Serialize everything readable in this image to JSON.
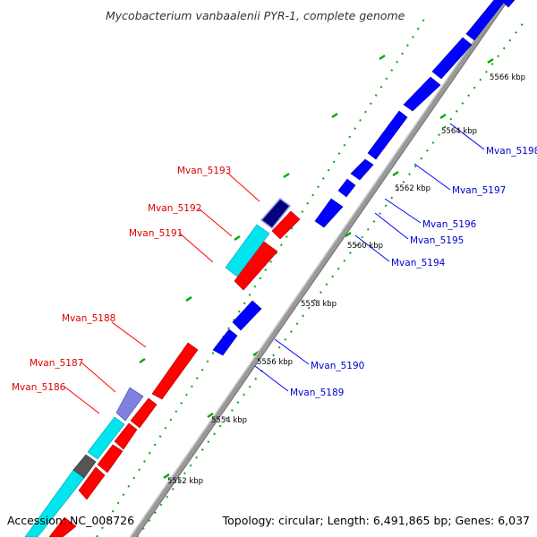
{
  "title": "Mycobacterium vanbaalenii PYR-1, complete genome",
  "footer": {
    "accession": "Accession: NC_008726",
    "topology": "Topology: circular; Length: 6,491,865 bp; Genes: 6,037"
  },
  "colors": {
    "background": "#ffffff",
    "forward_gene": "#ff0000",
    "reverse_gene": "#0000ff",
    "forward_label": "#dd0000",
    "reverse_label": "#0000cc",
    "tick": "#00aa00",
    "backbone": "#999999",
    "cyan_feature": "#00e5ee",
    "purple_feature": "#8080e0",
    "dark_feature": "#555555",
    "navy_feature": "#000080"
  },
  "scale_labels": [
    "5552 kbp",
    "5554 kbp",
    "5556 kbp",
    "5558 kbp",
    "5560 kbp",
    "5562 kbp",
    "5564 kbp",
    "5566 kbp"
  ],
  "forward_genes": [
    "Mvan_5186",
    "Mvan_5187",
    "Mvan_5188",
    "Mvan_5191",
    "Mvan_5192",
    "Mvan_5193"
  ],
  "reverse_genes": [
    "Mvan_5189",
    "Mvan_5190",
    "Mvan_5194",
    "Mvan_5195",
    "Mvan_5196",
    "Mvan_5197",
    "Mvan_5198"
  ]
}
